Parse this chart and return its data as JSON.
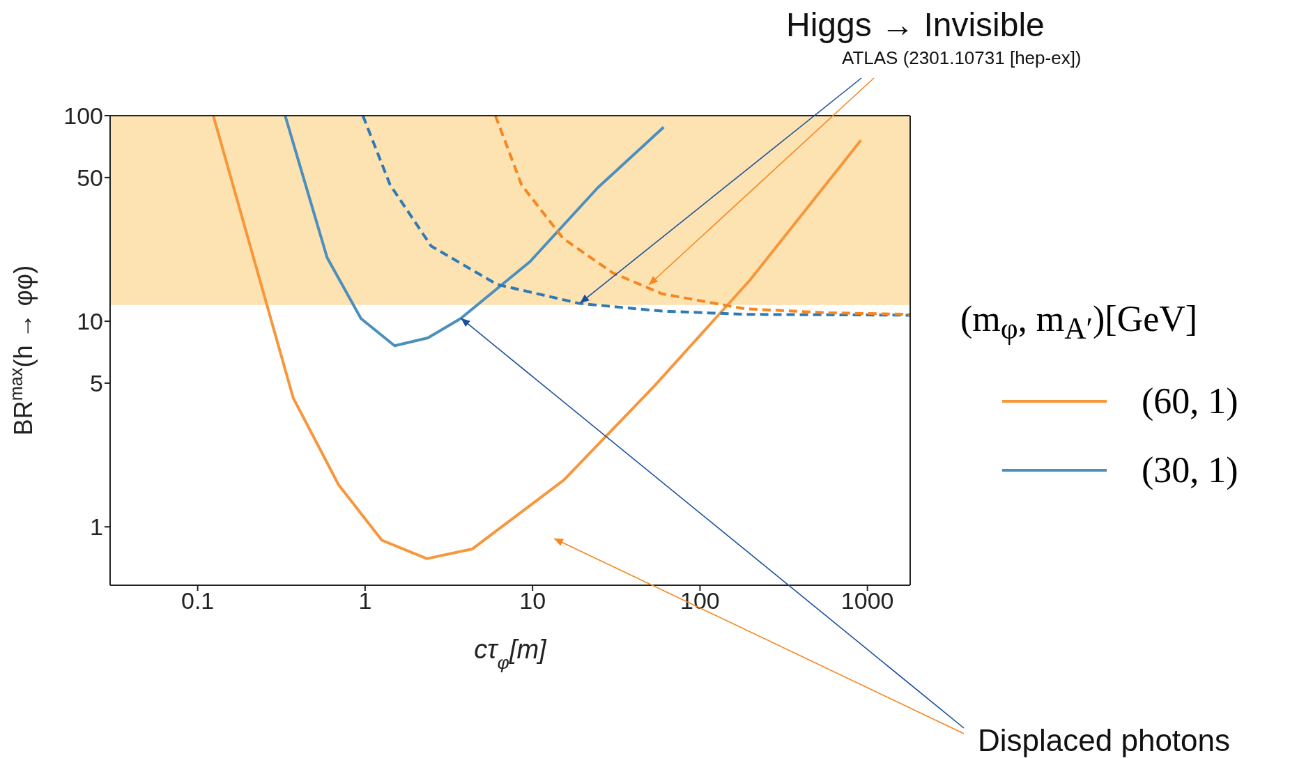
{
  "chart_data": {
    "type": "line",
    "title": "Higgs → Invisible",
    "xlabel": "cτ$_{φ}$[m]",
    "ylabel": "BR$^{max}$(h → φφ)",
    "legend_title": "(m$_{φ}$, m$_{A′}$)[GeV]",
    "annotations": [
      {
        "text": "ATLAS (2301.10731 [hep-ex])",
        "x": 19.1,
        "y": 12.2
      },
      {
        "text": "Displaced photons",
        "x": 3.72,
        "y": 10.3
      }
    ],
    "log": "xy",
    "xlim": [
      0.03,
      1800
    ],
    "xticks": [
      0.1,
      1,
      10,
      100,
      1000
    ],
    "ylim": [
      0.52,
      100
    ],
    "yticks": [
      1,
      5,
      10,
      50,
      100
    ],
    "legend": "right",
    "marker": "none",
    "bands": [
      {
        "axis": "y",
        "from": 12,
        "to": 100,
        "color": "#fde2b2"
      }
    ],
    "series": [
      {
        "name": "(60, 1)",
        "color": "#f7963a",
        "line_style": "solid",
        "x": [
          0.124,
          0.372,
          0.695,
          1.26,
          2.34,
          4.36,
          15.4,
          53.6,
          198,
          650,
          914
        ],
        "values": [
          100,
          4.24,
          1.6,
          0.86,
          0.7,
          0.78,
          1.69,
          4.86,
          15.8,
          53.5,
          76
        ]
      },
      {
        "name": "(30, 1)",
        "color": "#4a8fbe",
        "line_style": "solid",
        "x": [
          0.333,
          0.593,
          0.945,
          1.5,
          2.37,
          3.72,
          9.66,
          24.5,
          60.7
        ],
        "values": [
          100,
          20.4,
          10.3,
          7.6,
          8.3,
          10.3,
          19.5,
          44.6,
          87.9
        ]
      },
      {
        "color": "#2f7ab5",
        "line_style": "dashed",
        "x": [
          0.97,
          1.41,
          2.48,
          6.14,
          19.1,
          59.3,
          185,
          1800
        ],
        "values": [
          100,
          46.1,
          23.2,
          15.1,
          12.2,
          11.2,
          10.8,
          10.7
        ]
      },
      {
        "color": "#f6861f",
        "line_style": "dashed",
        "x": [
          6.0,
          8.6,
          15.2,
          30.1,
          59.3,
          185,
          574,
          1800
        ],
        "values": [
          100,
          46,
          25.3,
          17.2,
          13.6,
          11.5,
          11.0,
          10.8
        ]
      }
    ]
  }
}
